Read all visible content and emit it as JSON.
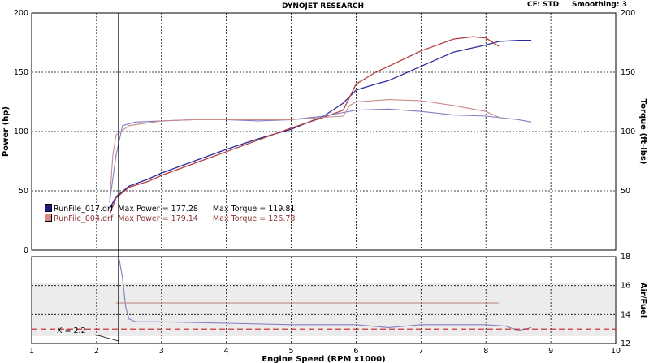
{
  "header": {
    "title": "DYNOJET RESEARCH",
    "cf": "CF: STD",
    "smoothing": "Smoothing: 3"
  },
  "legend": [
    {
      "run": "RunFile_017.drf",
      "max_power": "Max Power = 177.28",
      "max_torque": "Max Torque = 119.81",
      "color": "#1a1a8c"
    },
    {
      "run": "RunFile_004.drf",
      "max_power": "Max Power = 179.14",
      "max_torque": "Max Torque = 126.78",
      "color": "#b03a3a"
    }
  ],
  "cursor": {
    "label": "X = 2.2",
    "x": 2.2
  },
  "colors": {
    "run017": "#2b2b9c",
    "run004": "#b04040",
    "run017_torque": "#7f7fc6",
    "run004_torque": "#c88a8a",
    "target": "#cc2222",
    "panel_bg": "#ececec"
  },
  "chart_data": [
    {
      "type": "line",
      "title": "DYNOJET RESEARCH",
      "xlabel": "Engine Speed (RPM x1000)",
      "ylabel": "Power (hp)",
      "y2label": "Torque (ft-lbs)",
      "xlim": [
        1,
        10
      ],
      "ylim": [
        0,
        200
      ],
      "y2lim": [
        0,
        200
      ],
      "xticks": [
        1,
        2,
        3,
        4,
        5,
        6,
        7,
        8,
        9,
        10
      ],
      "yticks": [
        0,
        50,
        100,
        150,
        200
      ],
      "y2ticks": [
        50,
        100,
        150,
        200
      ],
      "grid": true,
      "legend_position": "left",
      "series": [
        {
          "name": "RunFile_017.drf",
          "kind": "power",
          "x": [
            2.2,
            2.3,
            2.5,
            2.8,
            3.0,
            3.5,
            4.0,
            4.5,
            5.0,
            5.5,
            5.8,
            6.0,
            6.3,
            6.5,
            7.0,
            7.5,
            8.0,
            8.2,
            8.5,
            8.7
          ],
          "y": [
            35,
            45,
            54,
            60,
            65,
            75,
            85,
            94,
            102,
            113,
            124,
            135,
            140,
            143,
            155,
            167,
            173,
            176,
            177,
            177
          ]
        },
        {
          "name": "RunFile_004.drf",
          "kind": "power",
          "x": [
            2.2,
            2.3,
            2.5,
            2.8,
            3.0,
            3.5,
            4.0,
            4.5,
            5.0,
            5.5,
            5.8,
            6.0,
            6.3,
            6.5,
            7.0,
            7.5,
            7.8,
            8.0,
            8.2
          ],
          "y": [
            30,
            44,
            53,
            58,
            63,
            73,
            83,
            93,
            103,
            112,
            118,
            140,
            150,
            155,
            168,
            178,
            180,
            179,
            172
          ]
        },
        {
          "name": "RunFile_017.drf",
          "kind": "torque",
          "x": [
            2.2,
            2.3,
            2.4,
            2.6,
            3.0,
            3.5,
            4.0,
            4.5,
            5.0,
            5.5,
            6.0,
            6.5,
            7.0,
            7.5,
            8.0,
            8.5,
            8.7
          ],
          "y": [
            40,
            80,
            105,
            108,
            109,
            110,
            110,
            109,
            110,
            113,
            118,
            119,
            117,
            114,
            113,
            110,
            108
          ]
        },
        {
          "name": "RunFile_004.drf",
          "kind": "torque",
          "x": [
            2.2,
            2.25,
            2.3,
            2.5,
            3.0,
            3.5,
            4.0,
            4.5,
            5.0,
            5.5,
            5.8,
            5.9,
            6.0,
            6.5,
            7.0,
            7.5,
            8.0,
            8.2
          ],
          "y": [
            40,
            80,
            97,
            105,
            109,
            110,
            110,
            110,
            110,
            112,
            113,
            122,
            125,
            127,
            126,
            122,
            117,
            112
          ]
        }
      ]
    },
    {
      "type": "line",
      "ylabel": "Air/Fuel",
      "xlabel": "Engine Speed (RPM x1000)",
      "xlim": [
        1,
        10
      ],
      "ylim": [
        12,
        18
      ],
      "yticks": [
        12,
        14,
        16,
        18
      ],
      "grid": true,
      "series": [
        {
          "name": "RunFile_017.drf",
          "kind": "afr",
          "x": [
            2.35,
            2.4,
            2.45,
            2.5,
            2.6,
            3.0,
            4.0,
            5.0,
            6.0,
            6.5,
            7.0,
            7.5,
            8.0,
            8.3,
            8.5,
            8.7
          ],
          "y": [
            17.8,
            16.5,
            14.5,
            13.7,
            13.5,
            13.5,
            13.4,
            13.3,
            13.3,
            13.1,
            13.3,
            13.3,
            13.3,
            13.2,
            12.9,
            13.1
          ]
        },
        {
          "name": "RunFile_004.drf",
          "kind": "afr",
          "x": [
            2.3,
            8.2
          ],
          "y": [
            14.8,
            14.8
          ]
        },
        {
          "name": "",
          "kind": "target",
          "x": [
            1,
            10
          ],
          "y": [
            13.0,
            13.0
          ]
        }
      ]
    }
  ]
}
